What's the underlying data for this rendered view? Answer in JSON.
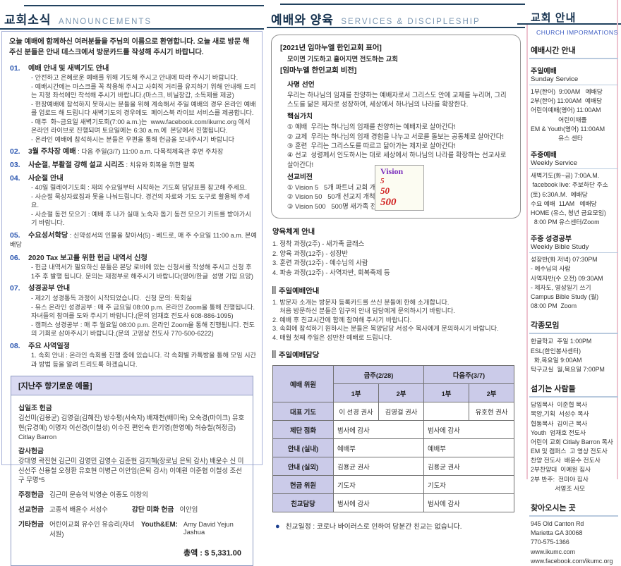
{
  "left": {
    "title_ko": "교회소식",
    "title_en": "ANNOUNCEMENTS",
    "intro": "오늘 예배에 함께하신 여러분들을 주님의 이름으로 환영합니다. 오늘 새로 방문 해 주신 분들은 안내 데스크에서 방문카드를 작성해 주시기 바랍니다.",
    "items": [
      {
        "num": "01.",
        "title": "예배 안내 및 새벽기도 안내",
        "tail": "",
        "lines": [
          "- 안전하고 은혜로운 예배를 위해 기도해 주시고 안내에 따라 주시기 바랍니다.",
          "- 예배시간에는 마스크를 꼭 착용해 주시고 사회적 거리를 유지하기 위해 안내해 드리는 지정 좌석에만 착석해 주시기 바랍니다.(마스크, 비닐장갑, 소독제를 제공)",
          "- 현장예배에 참석하지 못하시는 분들을 위해 계속해서 주일 예배의 경우 온라인 예배를 업로드 해 드립니다 새벽기도의 경우에도  페이스북 라이브 서비스를 제공합니다.",
          "- 매주  화~금요일 새벽기도회(7:00 a.m.)는  www.facebook.com/ikumc.org 에서 온라인 라이브로 진행되며 토요일에는 6:30 a.m.에  본당에서 진행됩니다.",
          "- 온라인 예배에 참석하시는 분들은 우편을 통해 헌금을 보내주시기 바랍니다"
        ]
      },
      {
        "num": "02.",
        "title": "3월 주차장 예배",
        "tail": " : 다음 주일(3/7) 11:00 a.m. 다목적체육관 후면 주차장",
        "lines": []
      },
      {
        "num": "03.",
        "title": "사순절, 부활절 강해 설교 시리즈",
        "tail": " : 치유와 회복을 위한 팔복",
        "lines": []
      },
      {
        "num": "04.",
        "title": "사순절 안내",
        "tail": "",
        "lines": [
          "- 40일 릴레이기도회 : 재의 수요일부터 시작하는 기도회 담당표를 참고해 주세요.",
          "- 사순절 묵상자료집과 못을 나눠드립니다. 경건의 자료와 기도 도구로 활용해 주세요.",
          "- 사순절 동전 모으기 : 예배 후 나가 실때 노숙자 돕기 동전 모으기 키트를 받아가시기 바랍니다."
        ]
      },
      {
        "num": "05.",
        "title": "수요성서학당",
        "tail": " : 신약성서의 인물을 찾아서(5) - 베드로, 매 주 수요일 11:00 a.m.  본예배당",
        "lines": []
      },
      {
        "num": "06.",
        "title": "2020 Tax 보고를 위한 헌금 내역서 신청",
        "tail": "",
        "lines": [
          "- 헌금 내역서가 필요하신 분들은 본당 로비에 있는 신청서를 작성해 주시고 신청 후  1주 후 발행 됩니다. 문의는 재정부로 해주시기 바랍니다(영어/한글  성명 기입 요망)"
        ]
      },
      {
        "num": "07.",
        "title": "성경공부 안내",
        "tail": "",
        "lines": [
          "- 제2기 성경통독 과정이 시작되었습니다.  신청 문의: 목회실",
          "- 유스 온라인 성경공부 : 매 주 금요일 08:00 p.m. 온라인 Zoom을 통해 진행됩니다. 자녀들의 참여를 도와 주시기 바랍니다.(문의 엄재호 전도사 608-886-1095)",
          "- 캠퍼스 성경공부 : 매 주 월요일 08:00 p.m. 온라인 Zoom을 통해 진행됩니다. 전도의 기회로 삼아주시기 바랍니다.(문의 고영상 전도사 770-500-6222)"
        ]
      },
      {
        "num": "08.",
        "title": "주요 사역일정",
        "tail": "",
        "lines": [
          "1. 속회 안내 : 온라인 속회를 진행 중에 있습니다. 각 속회별 카톡방을 통해 모임 시간과 방법 등을 알려 드리도록 하겠습니다."
        ]
      }
    ],
    "offering": {
      "header": "[지난주 향기로운 예물]",
      "tithe_label": "십일조 헌금",
      "tithe_names": "김선미(김용균) 김영걸(김혜진) 방수평(서숙자) 배재천(배미옥) 오숙경(마이크) 유호현(유경예) 이명자 이선경(이철성) 이수진 편인숙 한기영(한영예) 허승철(허정금) Citlay Barron",
      "thanks_label": "감사헌금",
      "thanks_names": "강대영 곽진현 김근미 김영민 김영수 김준현 김지혜(장로님 은퇴 감사) 배윤수 신 미 신선주 신용철 오정환 유호현 이병근 이안임(은퇴 감사) 이예원 이준협 이철성 조선구 무명*5",
      "weekly_label": "주정헌금",
      "weekly_names": "김근미 문승억 박영순 이종도 이창의",
      "mission_label": "선교헌금",
      "mission_names": "고종석 배윤수 서성수",
      "altar_label": "강단 미화 헌금",
      "altar_names": "이안임",
      "etc_label": "기타헌금",
      "etc_names": "어린이교회 유수인 유승리(자녀 서원)",
      "youth_label": "Youth&EM:",
      "youth_names": "Amy David Yejun Jashua",
      "total": "총액 : $ 5,331.00"
    }
  },
  "middle": {
    "title_ko": "예배와 양육",
    "title_en": "SERVICES & DISCIPLESHIP",
    "vbox": {
      "motto_title": "[2021년 임마누엘 한인교회 표어]",
      "motto": "모이면 기도하고 흩어지면 전도하는  교회",
      "vision_title": "[임마누엘 한인교회 비전]",
      "mission_label": "사명 선언",
      "mission_text": "우리는 하나님의 임재를 찬양하는 예배자로서 그리스도 안에 교제를 누리며, 그리스도를 닮은 제자로 성장하여, 세상에서 하나님의 나라를 확장한다.",
      "core_label": "핵심가치",
      "core_items": [
        "① 예배  우리는 하나님의 임재를 찬양하는 예배자로 살아간다!",
        "② 교제  우리는 하나님의 임재 경험을 나누고 서로를 돌보는 공동체로 살아간다!",
        "③ 훈련  우리는 그리스도를 따르고 닮아가는 제자로 살아간다!",
        "④ 선교  성령께서 인도하시는 대로 세상에서 하나님의 나라를 확장하는 선교사로 살아간다!"
      ],
      "mv_label": "선교비전",
      "mv_items": [
        "① Vision 5   5개 파트너 교회 개척",
        "② Vision 50   50개 선교지 개척",
        "③ Vision 500   500명 새가족 전도"
      ],
      "badge": {
        "word": "Vision",
        "n1": "5",
        "n2": "50",
        "n3": "500"
      }
    },
    "nurture": {
      "label": "양육체계 안내",
      "lines": [
        "1. 정착 과정(2주) - 새가족 클래스",
        "2. 양육 과정(12주) - 성장반",
        "3. 훈련 과정(12주) - 예수님의 사람",
        "4. 파송 과정(12주) - 사역자반, 회복축제 등"
      ]
    },
    "guide": {
      "label": "주일예배안내",
      "lines": [
        "1. 방문자 소개는 방문자 등록카드를 쓰신 분들에 한해 소개합니다.",
        "    처음 방문하신 분들은 입구의 안내 담당에게 문의하시기 바랍니다.",
        "2. 예배 후 친교시간에 함께 참여해 주시기 바랍니다.",
        "3. 속회에 참석하기 원하시는 분들은 목양담당 서성수 목사에게 문의하시기 바랍니다.",
        "4. 매월 첫째 주일은 성만찬 예배로 드립니다."
      ]
    },
    "table": {
      "label": "주일예배담당",
      "corner": "예배 위원",
      "week1": "금주(2/28)",
      "week2": "다음주(3/7)",
      "sub1": "1부",
      "sub2": "2부",
      "sub3": "1부",
      "sub4": "2부",
      "rows": [
        {
          "label": "대표 기도",
          "c1": "이 선경 권사",
          "c2": "김영걸 권사",
          "c3": "",
          "c4": "유호현 권사"
        },
        {
          "label": "제단 점화",
          "c1": "범사에 감사",
          "c3": "범사에 감사"
        },
        {
          "label": "안내 (실내)",
          "c1": "예배부",
          "c3": "예배부"
        },
        {
          "label": "안내 (실외)",
          "c1": "김용균 권사",
          "c3": "김용균 권사"
        },
        {
          "label": "헌금 위원",
          "c1": "기도자",
          "c3": "기도자"
        },
        {
          "label": "친교담당",
          "c1": "범사에 감사",
          "c3": "범사에 감사"
        }
      ]
    },
    "note": "친교일정 : 코로나 바이러스로 인하여 당분간 친교는 없습니다."
  },
  "right": {
    "title": "교회 안내",
    "subtitle": "CHURCH IMPORMATIONS",
    "worship_header": "예배시간 안내",
    "groups": [
      {
        "t": "주일예배",
        "s": "Sunday Service",
        "lines": [
          "1부(한어)  9:00AM   예배당",
          "2부(한어) 11:00AM  예배당",
          "어린이예배(영어) 11:00AM",
          "                어린이채플",
          "EM & Youth(영어) 11:00AM",
          "                유스 센타"
        ]
      },
      {
        "t": "주중예배",
        "s": "Weekly Service",
        "lines": [
          "새벽기도(화~금) 7:00A.M.",
          " facebook live: 주보하단 주소",
          "(토) 6:30A.M.  예배당",
          "수요 예배  11AM   예배당",
          "HOME (유스, 청년 금요모임)",
          "  8:00 PM 유스센터/Zoom"
        ]
      },
      {
        "t": "주중 성경공부",
        "s": "Weekly Bible Study",
        "lines": [
          "성장반(화 저녁) 07:30PM",
          "- 예수님의 사람",
          "사역자반(수 오전) 09:30AM",
          "- 제자도, 영성일기 쓰기",
          "Campus Bible Study (월)",
          "08:00 PM  Zoom"
        ]
      }
    ],
    "meetings": {
      "header": "각종모임",
      "lines": [
        "한글학교  주일 1:00PM",
        "ESL(한인봉사센터)",
        "  화,목요일 9:00AM",
        "탁구교실  월,목요일 7:00PM"
      ]
    },
    "servants": {
      "header": "섬기는 사람들",
      "lines": [
        "담임목사  이준협 목사",
        "목양,기획  서성수 목사",
        "협동목사  김이근 목사",
        "Youth  엄재호 전도사",
        "어린이 교회 Citlaly Barron 목사",
        "EM 및 캠퍼스  고 영상 전도사",
        "찬양 전도사  배윤수 전도사",
        "2부찬양대  이예원 집사",
        "2부 반주:  전미야 집사",
        "              서영조 사모"
      ]
    },
    "directions": {
      "header": "찾아오시는 곳",
      "lines": [
        "945 Old Canton Rd",
        "Marietta GA 30068",
        "770-575-1366",
        "www.ikumc.com",
        "www.facebook.com/ikumc.org"
      ]
    }
  }
}
